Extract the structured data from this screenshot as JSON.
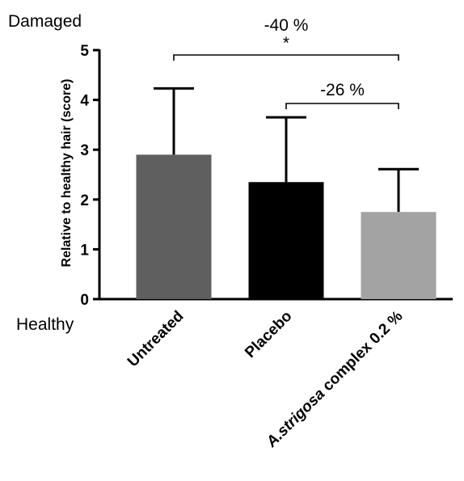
{
  "chart_data": {
    "type": "bar",
    "title": "",
    "xlabel": "",
    "ylabel": "Relative to healthy hair (score)",
    "ylim": [
      0,
      5
    ],
    "yticks": [
      "0",
      "1",
      "2",
      "3",
      "4",
      "5"
    ],
    "y_top_label": "Damaged",
    "y_bottom_label": "Healthy",
    "categories": [
      {
        "pre": "",
        "italic": "",
        "post": "Untreated"
      },
      {
        "pre": "",
        "italic": "",
        "post": "Placebo"
      },
      {
        "pre": "",
        "italic": "A.strigosa",
        "post": " complex 0.2 %"
      }
    ],
    "values": [
      2.9,
      2.35,
      1.75
    ],
    "errors": [
      1.33,
      1.3,
      0.86
    ],
    "colors": [
      "#5f5f5f",
      "#000000",
      "#a3a3a3"
    ],
    "comparisons": [
      {
        "from": 0,
        "to": 2,
        "label": "-40 %",
        "sig": "*"
      },
      {
        "from": 1,
        "to": 2,
        "label": "-26 %",
        "sig": ""
      }
    ]
  }
}
